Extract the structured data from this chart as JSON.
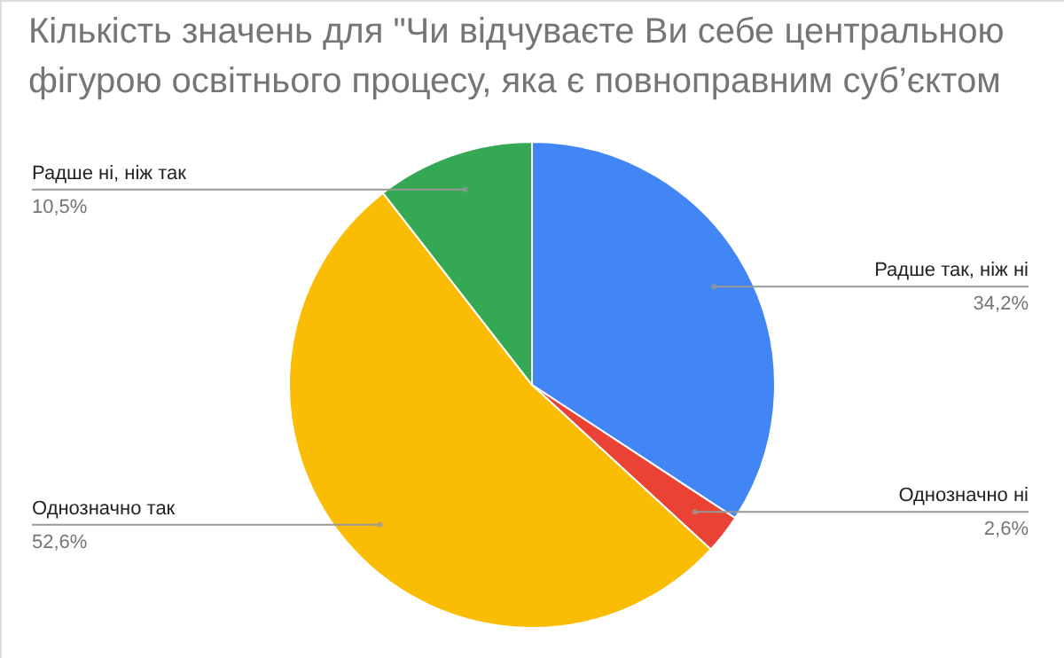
{
  "chart_data": {
    "type": "pie",
    "title": "Кількість значень для \"Чи відчуваєте Ви себе центральною фігурою освітнього процесу, яка є повноправним суб’єктом",
    "categories": [
      "Радше так, ніж ні",
      "Однозначно ні",
      "Однозначно так",
      "Радше ні, ніж так"
    ],
    "values": [
      34.2,
      2.6,
      52.6,
      10.5
    ],
    "colors": [
      "#4285f4",
      "#ea4335",
      "#fbbc04",
      "#34a853"
    ],
    "value_labels": [
      "34,2%",
      "2,6%",
      "52,6%",
      "10,5%"
    ]
  }
}
